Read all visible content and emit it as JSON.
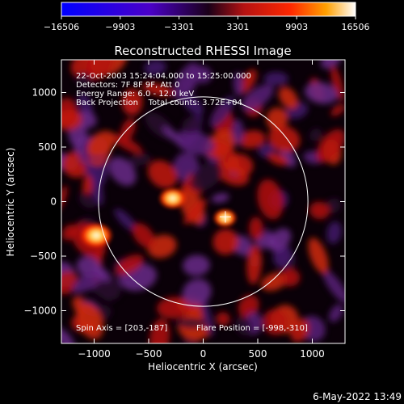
{
  "chart_data": {
    "type": "heatmap",
    "title": "Reconstructed RHESSI Image",
    "xlabel": "Heliocentric X (arcsec)",
    "ylabel": "Heliocentric Y (arcsec)",
    "xlim": [
      -1300,
      1300
    ],
    "ylim": [
      -1300,
      1300
    ],
    "x_ticks": [
      -1000,
      -500,
      0,
      500,
      1000
    ],
    "y_ticks": [
      -1000,
      -500,
      0,
      500,
      1000
    ],
    "x_tick_labels": [
      "−1000",
      "−500",
      "0",
      "500",
      "1000"
    ],
    "y_tick_labels": [
      "−1000",
      "−500",
      "0",
      "500",
      "1000"
    ],
    "colorbar": {
      "min": -16506,
      "max": 16506,
      "ticks": [
        -16506,
        -9903,
        -3301,
        3301,
        9903,
        16506
      ],
      "tick_labels": [
        "−16506",
        "−9903",
        "−3301",
        "3301",
        "9903",
        "16506"
      ],
      "colors": [
        "#0000ff",
        "#4b00c8",
        "#5a2a8a",
        "#b41212",
        "#ff2800",
        "#ffa000",
        "#ffffff"
      ]
    },
    "info_lines": [
      "22-Oct-2003 15:24:04.000 to 15:25:00.000",
      "Detectors: 7F 8F 9F, Att 0",
      "Energy Range: 6.0 - 12.0 keV",
      "Back Projection    Total counts: 3.72E+04"
    ],
    "spin_axis": "Spin Axis = [203,-187]",
    "flare_position_text": "Flare Position = [-998,-310]",
    "solar_limb_radius_arcsec": 960,
    "crosshair": [
      203,
      -140
    ],
    "sources": [
      {
        "x": -980,
        "y": -310,
        "strength": 1.0
      },
      {
        "x": -280,
        "y": 30,
        "strength": 0.75
      },
      {
        "x": 200,
        "y": -150,
        "strength": 0.55
      }
    ],
    "footer_date": "6-May-2022 13:49"
  }
}
